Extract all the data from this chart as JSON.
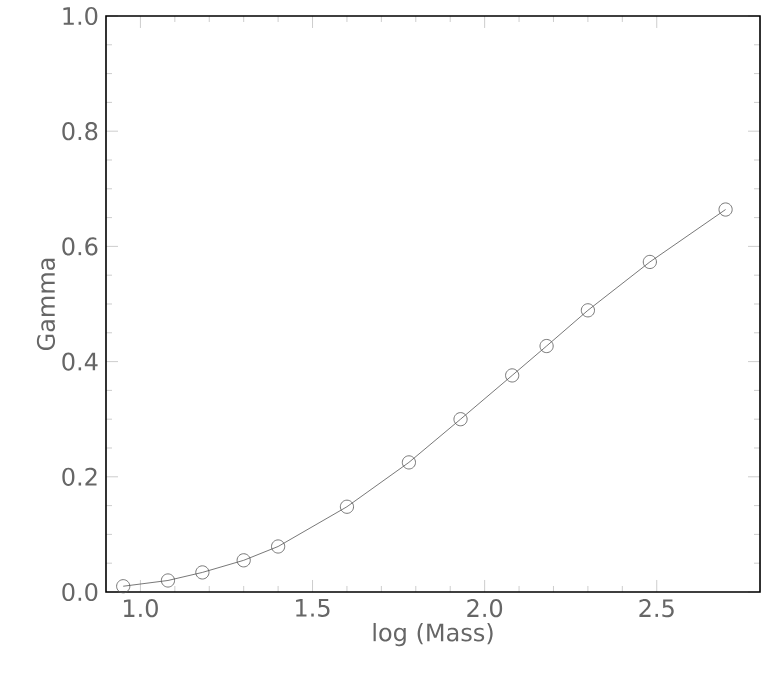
{
  "chart_data": {
    "type": "line",
    "xlabel": "log (Mass)",
    "ylabel": "Gamma",
    "x": [
      0.95,
      1.08,
      1.18,
      1.3,
      1.4,
      1.6,
      1.78,
      1.93,
      2.08,
      2.18,
      2.3,
      2.48,
      2.7
    ],
    "series": [
      {
        "color": "#555555",
        "values": [
          0.01,
          0.02,
          0.034,
          0.055,
          0.079,
          0.148,
          0.225,
          0.3,
          0.376,
          0.427,
          0.489,
          0.573,
          0.664
        ]
      }
    ],
    "xlim": [
      0.9,
      2.8
    ],
    "ylim": [
      0,
      1.0
    ],
    "xticks": [
      {
        "value": 1.0,
        "label": "1.0"
      },
      {
        "value": 1.5,
        "label": "1.5"
      },
      {
        "value": 2.0,
        "label": "2.0"
      },
      {
        "value": 2.5,
        "label": "2.5"
      }
    ],
    "yticks": [
      {
        "value": 0.0,
        "label": "0.0"
      },
      {
        "value": 0.2,
        "label": "0.2"
      },
      {
        "value": 0.4,
        "label": "0.4"
      },
      {
        "value": 0.6,
        "label": "0.6"
      },
      {
        "value": 0.8,
        "label": "0.8"
      },
      {
        "value": 1.0,
        "label": "1.0"
      }
    ],
    "marker": "circle",
    "line_style": "solid",
    "grid": false
  }
}
